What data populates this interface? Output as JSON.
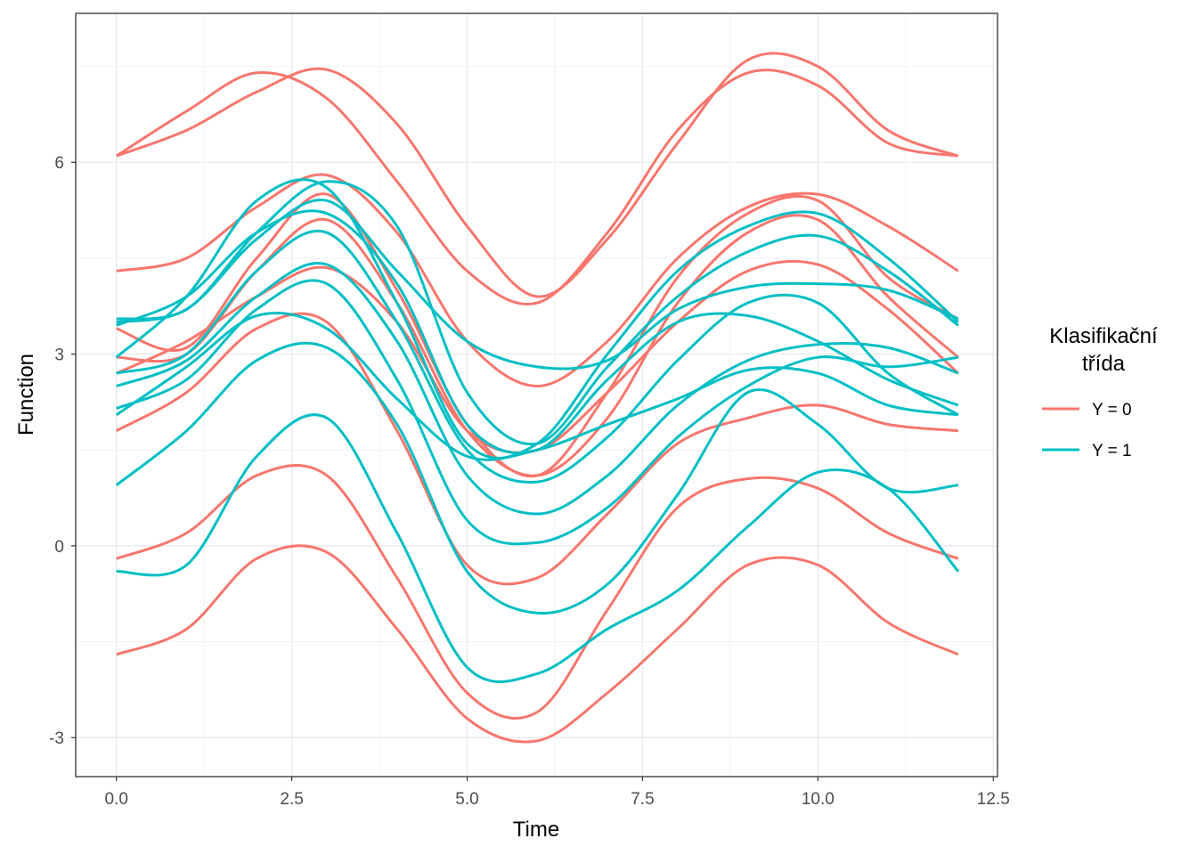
{
  "chart_data": {
    "type": "line",
    "title": "",
    "xlabel": "Time",
    "ylabel": "Function",
    "xlim": [
      -0.58,
      12.56
    ],
    "ylim": [
      -3.61,
      8.33
    ],
    "x_ticks": [
      0.0,
      2.5,
      5.0,
      7.5,
      10.0,
      12.5
    ],
    "x_tick_labels": [
      "0.0",
      "2.5",
      "5.0",
      "7.5",
      "10.0",
      "12.5"
    ],
    "y_ticks": [
      -3,
      0,
      3,
      6
    ],
    "y_tick_labels": [
      "-3",
      "0",
      "3",
      "6"
    ],
    "grid": true,
    "legend": {
      "title": "Klasifikační třída",
      "title_lines": [
        "Klasifikační",
        "třída"
      ],
      "placement": "right",
      "entries": [
        {
          "label": "Y = 0",
          "color": "#F8766D"
        },
        {
          "label": "Y = 1",
          "color": "#00BFC4"
        }
      ]
    },
    "x": [
      0,
      1,
      2,
      3,
      4,
      5,
      6,
      7,
      8,
      9,
      10,
      11,
      12
    ],
    "series": [
      {
        "group": "Y = 0",
        "values": [
          6.1,
          6.5,
          7.1,
          7.45,
          6.6,
          5.0,
          3.9,
          4.8,
          6.3,
          7.6,
          7.5,
          6.5,
          6.1
        ]
      },
      {
        "group": "Y = 0",
        "values": [
          6.1,
          6.8,
          7.4,
          7.0,
          5.7,
          4.3,
          3.8,
          4.9,
          6.5,
          7.4,
          7.2,
          6.3,
          6.1
        ]
      },
      {
        "group": "Y = 0",
        "values": [
          4.3,
          4.5,
          5.3,
          5.8,
          4.9,
          3.2,
          2.5,
          3.2,
          4.5,
          5.3,
          5.5,
          5.0,
          4.3
        ]
      },
      {
        "group": "Y = 0",
        "values": [
          3.4,
          3.1,
          4.5,
          5.5,
          4.0,
          1.9,
          1.1,
          2.4,
          4.2,
          5.2,
          5.4,
          4.2,
          3.55
        ]
      },
      {
        "group": "Y = 0",
        "values": [
          2.95,
          3.0,
          4.3,
          5.1,
          3.8,
          1.8,
          1.1,
          2.0,
          3.8,
          4.9,
          5.1,
          3.9,
          2.95
        ]
      },
      {
        "group": "Y = 0",
        "values": [
          2.7,
          3.2,
          3.9,
          4.35,
          3.5,
          1.8,
          1.5,
          2.4,
          3.5,
          4.3,
          4.4,
          3.7,
          2.7
        ]
      },
      {
        "group": "Y = 0",
        "values": [
          1.8,
          2.4,
          3.4,
          3.5,
          1.8,
          -0.3,
          -0.5,
          0.5,
          1.6,
          2.0,
          2.2,
          1.9,
          1.8
        ]
      },
      {
        "group": "Y = 0",
        "values": [
          -0.2,
          0.2,
          1.1,
          1.1,
          -0.5,
          -2.3,
          -2.6,
          -1.0,
          0.6,
          1.05,
          0.9,
          0.2,
          -0.2
        ]
      },
      {
        "group": "Y = 0",
        "values": [
          -1.7,
          -1.3,
          -0.2,
          -0.1,
          -1.3,
          -2.7,
          -3.05,
          -2.3,
          -1.3,
          -0.3,
          -0.3,
          -1.2,
          -1.7
        ]
      },
      {
        "group": "Y = 1",
        "values": [
          2.95,
          3.9,
          5.4,
          5.6,
          3.8,
          1.6,
          1.6,
          3.0,
          4.3,
          5.0,
          5.2,
          4.5,
          3.5
        ]
      },
      {
        "group": "Y = 1",
        "values": [
          3.55,
          3.7,
          4.9,
          5.7,
          5.0,
          2.4,
          1.6,
          2.8,
          3.9,
          4.6,
          4.85,
          4.3,
          3.45
        ]
      },
      {
        "group": "Y = 1",
        "values": [
          3.5,
          3.7,
          4.8,
          5.4,
          4.3,
          3.2,
          2.8,
          2.9,
          3.7,
          4.05,
          4.1,
          4.0,
          3.55
        ]
      },
      {
        "group": "Y = 1",
        "values": [
          3.45,
          3.9,
          4.9,
          5.2,
          4.1,
          1.9,
          1.5,
          2.6,
          3.5,
          3.6,
          3.2,
          2.6,
          2.2
        ]
      },
      {
        "group": "Y = 1",
        "values": [
          2.7,
          3.0,
          4.3,
          4.9,
          3.5,
          1.5,
          1.0,
          1.7,
          2.9,
          3.8,
          3.8,
          2.7,
          2.05
        ]
      },
      {
        "group": "Y = 1",
        "values": [
          2.5,
          2.9,
          3.9,
          4.4,
          3.2,
          1.1,
          0.5,
          1.1,
          2.2,
          2.9,
          3.15,
          3.1,
          2.7
        ]
      },
      {
        "group": "Y = 1",
        "values": [
          2.15,
          2.6,
          3.7,
          4.1,
          2.6,
          0.4,
          0.05,
          0.6,
          1.7,
          2.5,
          2.95,
          2.8,
          2.95
        ]
      },
      {
        "group": "Y = 1",
        "values": [
          2.05,
          2.8,
          3.6,
          3.4,
          2.3,
          1.4,
          1.5,
          1.9,
          2.3,
          2.75,
          2.7,
          2.2,
          2.05
        ]
      },
      {
        "group": "Y = 1",
        "values": [
          0.95,
          1.8,
          2.9,
          3.1,
          1.9,
          -0.4,
          -1.05,
          -0.6,
          0.8,
          2.4,
          1.9,
          0.9,
          0.95
        ]
      },
      {
        "group": "Y = 1",
        "values": [
          -0.4,
          -0.3,
          1.4,
          2.0,
          0.2,
          -1.9,
          -2.0,
          -1.3,
          -0.7,
          0.3,
          1.15,
          0.9,
          -0.4
        ]
      }
    ]
  }
}
